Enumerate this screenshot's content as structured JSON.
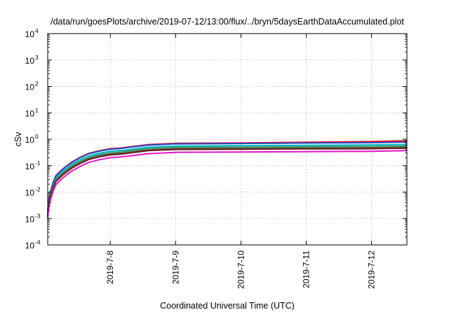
{
  "chart_data": {
    "type": "line",
    "title": "/data/run/goesPlots/archive/2019-07-12/13:00/flux/../bryn/5daysEarthDataAccumulated.plot",
    "xlabel": "Coordinated Universal Time (UTC)",
    "ylabel": "cSv",
    "y_scale": "log",
    "ylim": [
      0.0001,
      10000
    ],
    "y_ticks": [
      {
        "value": 0.0001,
        "base": "10",
        "exp": "-4"
      },
      {
        "value": 0.001,
        "base": "10",
        "exp": "-3"
      },
      {
        "value": 0.01,
        "base": "10",
        "exp": "-2"
      },
      {
        "value": 0.1,
        "base": "10",
        "exp": "-1"
      },
      {
        "value": 1,
        "base": "10",
        "exp": "0"
      },
      {
        "value": 10,
        "base": "10",
        "exp": "1"
      },
      {
        "value": 100,
        "base": "10",
        "exp": "2"
      },
      {
        "value": 1000,
        "base": "10",
        "exp": "3"
      },
      {
        "value": 10000,
        "base": "10",
        "exp": "4"
      }
    ],
    "xlim": [
      "2019-07-07T01:00",
      "2019-07-12T13:00"
    ],
    "x_ticks": [
      {
        "value": "2019-07-08T00:00",
        "label": "2019-7-8"
      },
      {
        "value": "2019-07-09T00:00",
        "label": "2019-7-9"
      },
      {
        "value": "2019-07-10T00:00",
        "label": "2019-7-10"
      },
      {
        "value": "2019-07-11T00:00",
        "label": "2019-7-11"
      },
      {
        "value": "2019-07-12T00:00",
        "label": "2019-7-12"
      }
    ],
    "grid": true,
    "x": [
      "2019-07-07T01:00",
      "2019-07-07T01:15",
      "2019-07-07T02:00",
      "2019-07-07T03:00",
      "2019-07-07T04:00",
      "2019-07-07T06:00",
      "2019-07-07T08:00",
      "2019-07-07T10:00",
      "2019-07-07T13:00",
      "2019-07-07T16:00",
      "2019-07-07T20:00",
      "2019-07-08T00:00",
      "2019-07-08T04:00",
      "2019-07-08T08:00",
      "2019-07-08T14:00",
      "2019-07-09T00:00",
      "2019-07-10T00:00",
      "2019-07-11T00:00",
      "2019-07-12T00:00",
      "2019-07-12T13:00"
    ],
    "series": [
      {
        "color": "#e8112d",
        "values": [
          0.002,
          0.004,
          0.011,
          0.024,
          0.042,
          0.068,
          0.1,
          0.14,
          0.21,
          0.29,
          0.37,
          0.44,
          0.47,
          0.53,
          0.63,
          0.7,
          0.73,
          0.77,
          0.82,
          0.88
        ]
      },
      {
        "color": "#1f4fbf",
        "values": [
          0.0019,
          0.0038,
          0.0105,
          0.023,
          0.04,
          0.065,
          0.096,
          0.134,
          0.2,
          0.28,
          0.355,
          0.42,
          0.45,
          0.51,
          0.6,
          0.67,
          0.69,
          0.72,
          0.74,
          0.78
        ]
      },
      {
        "color": "#00b0c8",
        "values": [
          0.0016,
          0.0032,
          0.0088,
          0.019,
          0.033,
          0.054,
          0.08,
          0.112,
          0.166,
          0.23,
          0.295,
          0.35,
          0.375,
          0.42,
          0.5,
          0.55,
          0.57,
          0.59,
          0.61,
          0.63
        ]
      },
      {
        "color": "#3aa655",
        "values": [
          0.0014,
          0.0028,
          0.0077,
          0.017,
          0.029,
          0.048,
          0.07,
          0.098,
          0.146,
          0.2,
          0.26,
          0.305,
          0.33,
          0.37,
          0.44,
          0.49,
          0.5,
          0.52,
          0.53,
          0.55
        ]
      },
      {
        "color": "#606060",
        "values": [
          0.0013,
          0.0026,
          0.007,
          0.0155,
          0.027,
          0.044,
          0.064,
          0.09,
          0.133,
          0.185,
          0.235,
          0.28,
          0.3,
          0.335,
          0.4,
          0.45,
          0.46,
          0.47,
          0.48,
          0.5
        ]
      },
      {
        "color": "#6a1b1b",
        "values": [
          0.0012,
          0.0024,
          0.0064,
          0.014,
          0.025,
          0.04,
          0.059,
          0.082,
          0.122,
          0.17,
          0.215,
          0.255,
          0.275,
          0.31,
          0.37,
          0.41,
          0.42,
          0.43,
          0.44,
          0.46
        ]
      },
      {
        "color": "#e313c8",
        "values": [
          0.001,
          0.0019,
          0.005,
          0.011,
          0.019,
          0.031,
          0.046,
          0.064,
          0.095,
          0.132,
          0.168,
          0.2,
          0.215,
          0.24,
          0.285,
          0.32,
          0.33,
          0.34,
          0.35,
          0.37
        ]
      }
    ]
  }
}
